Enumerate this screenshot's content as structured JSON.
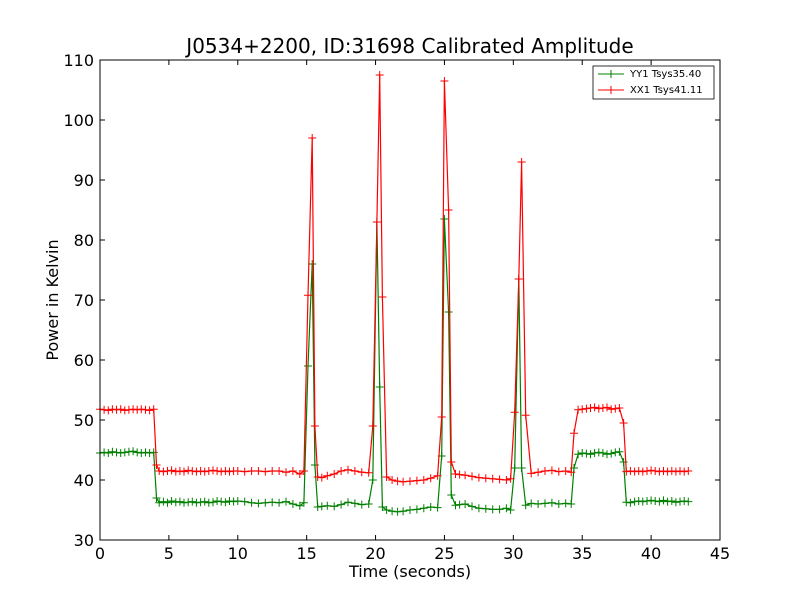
{
  "chart_data": {
    "type": "line",
    "title": "J0534+2200, ID:31698 Calibrated Amplitude",
    "xlabel": "Time (seconds)",
    "ylabel": "Power in Kelvin",
    "xlim": [
      0,
      45
    ],
    "ylim": [
      30,
      110
    ],
    "xticks": [
      0,
      5,
      10,
      15,
      20,
      25,
      30,
      35,
      40,
      45
    ],
    "yticks": [
      30,
      40,
      50,
      60,
      70,
      80,
      90,
      100,
      110
    ],
    "grid": false,
    "legend_position": "top-right",
    "series": [
      {
        "name": "YY1 Tsys35.40",
        "color": "#008000",
        "marker": "+",
        "x": [
          0.0,
          0.3,
          0.6,
          0.9,
          1.2,
          1.5,
          1.8,
          2.1,
          2.4,
          2.7,
          3.0,
          3.3,
          3.6,
          3.9,
          4.1,
          4.3,
          4.6,
          4.9,
          5.2,
          5.5,
          5.8,
          6.1,
          6.4,
          6.7,
          7.0,
          7.3,
          7.6,
          7.9,
          8.2,
          8.5,
          8.8,
          9.1,
          9.4,
          9.7,
          10.0,
          10.5,
          11.0,
          11.5,
          12.0,
          12.5,
          13.0,
          13.5,
          14.0,
          14.5,
          14.8,
          15.1,
          15.4,
          15.6,
          15.8,
          16.1,
          16.5,
          17.0,
          17.5,
          18.0,
          18.5,
          19.0,
          19.5,
          19.8,
          20.1,
          20.3,
          20.5,
          20.8,
          21.2,
          21.6,
          22.0,
          22.5,
          23.0,
          23.5,
          24.0,
          24.5,
          24.8,
          25.0,
          25.3,
          25.5,
          25.8,
          26.1,
          26.5,
          27.0,
          27.5,
          28.0,
          28.5,
          29.0,
          29.5,
          29.8,
          30.1,
          30.4,
          30.6,
          30.9,
          31.3,
          31.8,
          32.3,
          32.8,
          33.3,
          33.8,
          34.2,
          34.4,
          34.7,
          35.0,
          35.3,
          35.6,
          35.9,
          36.2,
          36.5,
          36.8,
          37.1,
          37.4,
          37.7,
          38.0,
          38.2,
          38.5,
          38.8,
          39.1,
          39.4,
          39.7,
          40.0,
          40.3,
          40.6,
          40.9,
          41.2,
          41.5,
          41.8,
          42.1,
          42.4,
          42.7
        ],
        "y": [
          44.5,
          44.6,
          44.5,
          44.7,
          44.6,
          44.5,
          44.6,
          44.7,
          44.8,
          44.6,
          44.5,
          44.6,
          44.5,
          44.6,
          37.0,
          36.2,
          36.4,
          36.2,
          36.5,
          36.3,
          36.4,
          36.2,
          36.3,
          36.4,
          36.2,
          36.3,
          36.4,
          36.2,
          36.3,
          36.5,
          36.4,
          36.3,
          36.5,
          36.4,
          36.5,
          36.4,
          36.2,
          36.1,
          36.2,
          36.3,
          36.2,
          36.4,
          36.0,
          35.7,
          36.2,
          59.0,
          76.0,
          42.5,
          35.5,
          35.6,
          35.7,
          35.6,
          35.9,
          36.3,
          36.1,
          35.9,
          36.0,
          40.0,
          83.0,
          55.5,
          35.5,
          35.0,
          34.8,
          34.7,
          34.8,
          35.0,
          35.1,
          35.3,
          35.5,
          35.4,
          44.0,
          83.5,
          68.0,
          37.5,
          35.8,
          35.9,
          36.0,
          35.6,
          35.3,
          35.2,
          35.1,
          35.1,
          35.3,
          35.0,
          42.0,
          73.5,
          42.0,
          35.8,
          36.1,
          36.0,
          36.1,
          36.2,
          36.0,
          36.1,
          36.0,
          42.0,
          44.3,
          44.5,
          44.4,
          44.3,
          44.5,
          44.6,
          44.5,
          44.3,
          44.4,
          44.6,
          44.7,
          43.0,
          36.3,
          36.2,
          36.4,
          36.5,
          36.4,
          36.5,
          36.6,
          36.5,
          36.4,
          36.6,
          36.4,
          36.5,
          36.3,
          36.4,
          36.5,
          36.4
        ]
      },
      {
        "name": "XX1 Tsys41.11",
        "color": "#ff0000",
        "marker": "+",
        "x": [
          0.0,
          0.3,
          0.6,
          0.9,
          1.2,
          1.5,
          1.8,
          2.1,
          2.4,
          2.7,
          3.0,
          3.3,
          3.6,
          3.9,
          4.1,
          4.3,
          4.6,
          4.9,
          5.2,
          5.5,
          5.8,
          6.1,
          6.4,
          6.7,
          7.0,
          7.3,
          7.6,
          7.9,
          8.2,
          8.5,
          8.8,
          9.1,
          9.4,
          9.7,
          10.0,
          10.5,
          11.0,
          11.5,
          12.0,
          12.5,
          13.0,
          13.5,
          14.0,
          14.5,
          14.8,
          15.1,
          15.4,
          15.6,
          15.8,
          16.1,
          16.5,
          17.0,
          17.5,
          18.0,
          18.5,
          19.0,
          19.5,
          19.8,
          20.1,
          20.3,
          20.5,
          20.8,
          21.2,
          21.6,
          22.0,
          22.5,
          23.0,
          23.5,
          24.0,
          24.5,
          24.8,
          25.0,
          25.3,
          25.5,
          25.8,
          26.1,
          26.5,
          27.0,
          27.5,
          28.0,
          28.5,
          29.0,
          29.5,
          29.8,
          30.1,
          30.4,
          30.6,
          30.9,
          31.3,
          31.8,
          32.3,
          32.8,
          33.3,
          33.8,
          34.2,
          34.4,
          34.7,
          35.0,
          35.3,
          35.6,
          35.9,
          36.2,
          36.5,
          36.8,
          37.1,
          37.4,
          37.7,
          38.0,
          38.2,
          38.5,
          38.8,
          39.1,
          39.4,
          39.7,
          40.0,
          40.3,
          40.6,
          40.9,
          41.2,
          41.5,
          41.8,
          42.1,
          42.4,
          42.7
        ],
        "y": [
          51.8,
          51.7,
          51.6,
          51.8,
          51.7,
          51.8,
          51.6,
          51.7,
          51.8,
          51.7,
          51.8,
          51.7,
          51.6,
          51.8,
          42.5,
          41.5,
          41.4,
          41.5,
          41.6,
          41.4,
          41.5,
          41.4,
          41.6,
          41.5,
          41.4,
          41.5,
          41.4,
          41.5,
          41.6,
          41.5,
          41.4,
          41.5,
          41.4,
          41.5,
          41.5,
          41.4,
          41.5,
          41.5,
          41.4,
          41.5,
          41.5,
          41.3,
          41.5,
          41.0,
          41.5,
          70.8,
          97.0,
          49.0,
          40.5,
          40.4,
          40.7,
          41.0,
          41.5,
          41.7,
          41.5,
          41.3,
          41.2,
          49.0,
          83.0,
          107.5,
          70.5,
          40.5,
          40.0,
          39.8,
          39.7,
          39.8,
          39.9,
          40.0,
          40.3,
          40.7,
          50.5,
          106.5,
          85.0,
          43.0,
          41.0,
          40.9,
          40.8,
          40.6,
          40.4,
          40.3,
          40.2,
          40.1,
          40.0,
          40.2,
          51.3,
          73.5,
          93.0,
          50.8,
          41.1,
          41.3,
          41.5,
          41.6,
          41.4,
          41.5,
          41.3,
          47.8,
          51.7,
          51.8,
          51.9,
          52.0,
          52.1,
          51.9,
          52.0,
          52.1,
          51.8,
          51.9,
          52.0,
          49.5,
          41.4,
          41.5,
          41.4,
          41.5,
          41.4,
          41.5,
          41.6,
          41.5,
          41.4,
          41.5,
          41.4,
          41.5,
          41.4,
          41.5,
          41.4,
          41.5
        ]
      }
    ]
  }
}
